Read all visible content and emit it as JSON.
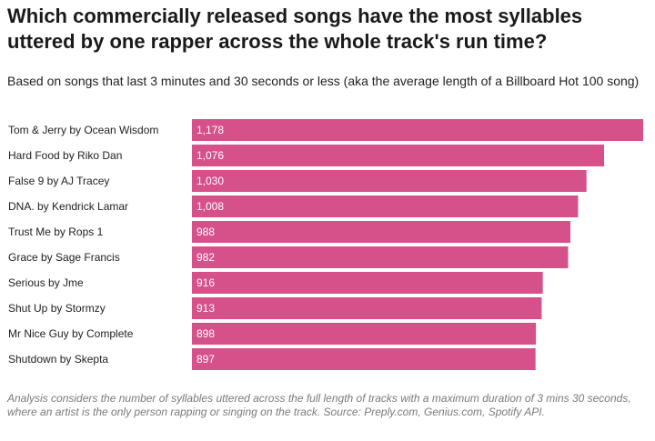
{
  "chart_data": {
    "type": "bar",
    "orientation": "horizontal",
    "title": "Which commercially released songs have the most syllables uttered by one rapper across the whole track's run time?",
    "subtitle": "Based on songs that last 3 minutes and 30 seconds or less (aka the average length of a Billboard Hot 100 song)",
    "categories": [
      "Tom & Jerry by Ocean Wisdom",
      "Hard Food by Riko Dan",
      "False 9 by AJ Tracey",
      "DNA. by Kendrick Lamar",
      "Trust Me by Rops 1",
      "Grace by Sage Francis",
      "Serious by Jme",
      "Shut Up by Stormzy",
      "Mr Nice Guy by Complete",
      "Shutdown by Skepta"
    ],
    "values": [
      1178,
      1076,
      1030,
      1008,
      988,
      982,
      916,
      913,
      898,
      897
    ],
    "value_labels": [
      "1,178",
      "1,076",
      "1,030",
      "1,008",
      "988",
      "982",
      "916",
      "913",
      "898",
      "897"
    ],
    "xlim": [
      0,
      1178
    ],
    "bar_color": "#d6508a",
    "value_label_color": "#ffffff",
    "grid": false,
    "legend": "none",
    "note": "Analysis considers the number of syllables uttered across the full length of tracks with a maximum duration of 3 mins 30 seconds, where an artist is the only person rapping or singing on the track. Source: Preply.com, Genius.com, Spotify API."
  }
}
